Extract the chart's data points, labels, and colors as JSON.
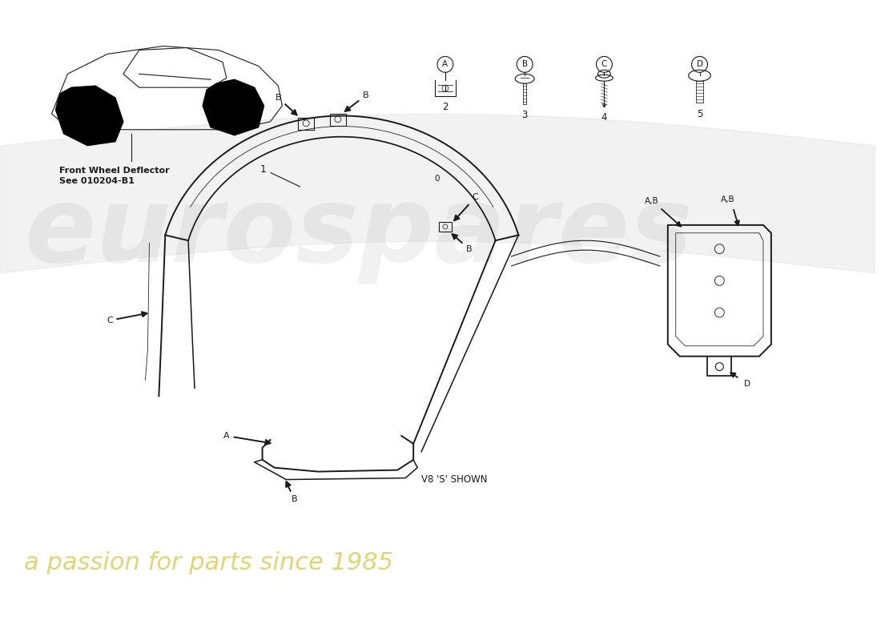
{
  "bg_color": "#ffffff",
  "line_color": "#1a1a1a",
  "gray_light": "#cccccc",
  "watermark_gray": "#bbbbbb",
  "watermark_yellow": "#d4c84a",
  "front_wheel_text_line1": "Front Wheel Deflector",
  "front_wheel_text_line2": "See 010204-B1",
  "v8_shown_text": "V8 'S' SHOWN"
}
